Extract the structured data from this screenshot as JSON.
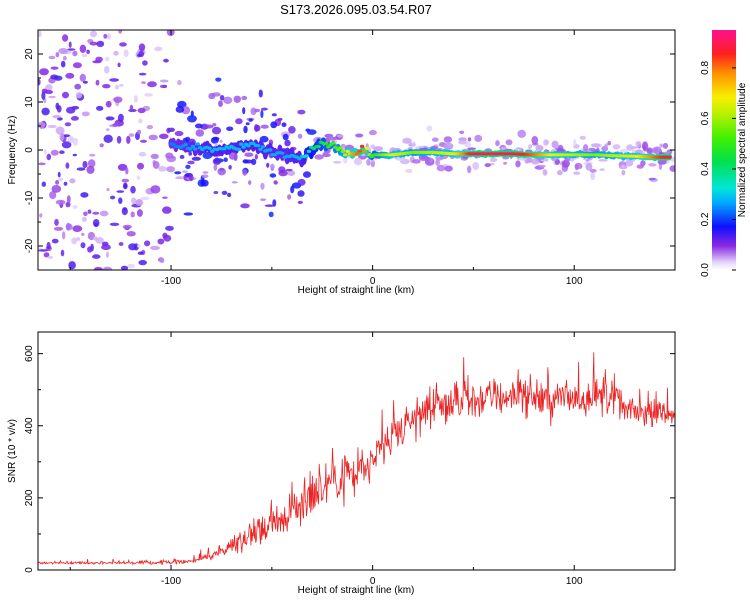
{
  "title": "S173.2026.095.03.54.R07",
  "chart_data": [
    {
      "type": "heatmap",
      "xlabel": "Height of straight line (km)",
      "ylabel": "Frequency (Hz)",
      "xlim": [
        -166,
        150
      ],
      "ylim": [
        -25,
        25
      ],
      "xticks": [
        -100,
        0,
        100
      ],
      "yticks": [
        -20,
        -10,
        0,
        10,
        20
      ],
      "colorbar": {
        "label": "Normalized spectral amplitude",
        "range": [
          0.0,
          0.95
        ],
        "ticks": [
          0.0,
          0.2,
          0.4,
          0.6,
          0.8
        ],
        "tick_labels": [
          "0.0",
          "0.2",
          "0.4",
          "0.6",
          "0.8"
        ],
        "colormap": "rainbow"
      },
      "ridge": {
        "description": "frequency of peak spectral amplitude vs height",
        "x": [
          -100,
          -80,
          -60,
          -45,
          -35,
          -28,
          -20,
          -15,
          -10,
          -5,
          0,
          5,
          10,
          20,
          30,
          40,
          50,
          60,
          70,
          80,
          90,
          100,
          110,
          120,
          130,
          140,
          148
        ],
        "freq": [
          1,
          0,
          1,
          -1,
          -2,
          1,
          1,
          0,
          -1,
          0,
          -1,
          -1,
          -1,
          -0.5,
          -0.5,
          -0.8,
          -0.8,
          -0.8,
          -0.8,
          -1,
          -1,
          -1,
          -1,
          -1.2,
          -1.3,
          -1.5,
          -1.5
        ],
        "amplitude": [
          0.25,
          0.3,
          0.3,
          0.28,
          0.3,
          0.45,
          0.55,
          0.6,
          0.8,
          0.9,
          0.5,
          0.6,
          0.7,
          0.6,
          0.65,
          0.7,
          0.95,
          0.95,
          0.95,
          0.85,
          0.7,
          0.65,
          0.6,
          0.65,
          0.7,
          0.85,
          0.95
        ]
      }
    },
    {
      "type": "line",
      "xlabel": "Height of straight line (km)",
      "ylabel": "SNR (10 * v/v)",
      "xlim": [
        -166,
        150
      ],
      "ylim": [
        0,
        660
      ],
      "xticks": [
        -100,
        0,
        100
      ],
      "yticks": [
        0,
        200,
        400,
        600
      ],
      "series": [
        {
          "name": "SNR",
          "color": "#ee2222",
          "x": [
            -166,
            -140,
            -120,
            -100,
            -90,
            -80,
            -70,
            -60,
            -50,
            -40,
            -30,
            -20,
            -10,
            0,
            10,
            20,
            30,
            40,
            50,
            60,
            70,
            80,
            90,
            100,
            110,
            120,
            124,
            130,
            140,
            150
          ],
          "mean": [
            20,
            20,
            20,
            22,
            25,
            40,
            70,
            100,
            130,
            160,
            210,
            260,
            260,
            300,
            360,
            420,
            450,
            460,
            470,
            480,
            480,
            480,
            470,
            480,
            480,
            480,
            450,
            440,
            430,
            440
          ],
          "noise": [
            5,
            5,
            6,
            8,
            10,
            18,
            30,
            50,
            60,
            60,
            80,
            100,
            110,
            70,
            70,
            70,
            70,
            70,
            70,
            70,
            70,
            70,
            70,
            70,
            70,
            70,
            40,
            40,
            40,
            40
          ]
        }
      ]
    }
  ]
}
